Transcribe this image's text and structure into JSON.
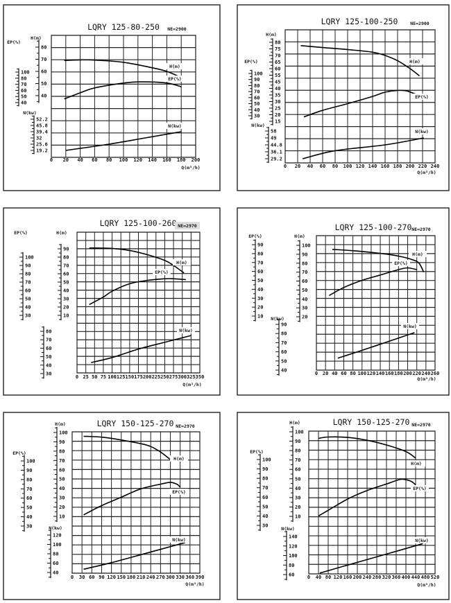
{
  "chart_data": [
    {
      "type": "line",
      "title": "LQRY 125-80-250",
      "ne": "NE=2900",
      "xlabel": "Q(m³/h)",
      "xlim": [
        0,
        200
      ],
      "xticks": [
        "0",
        "20",
        "40",
        "60",
        "80",
        "100",
        "120",
        "140",
        "160",
        "180",
        "200"
      ],
      "grid": true,
      "axes": {
        "H": {
          "title": "H(m)",
          "labels": [
            "80",
            "70",
            "60",
            "50",
            "40"
          ]
        },
        "EP": {
          "title": "EP(%)",
          "labels": [
            "100",
            "80",
            "70",
            "60",
            "50",
            "40"
          ]
        },
        "N": {
          "title": "N(kw)",
          "labels": [
            "52.2",
            "45.8",
            "39.4",
            "32",
            "25.6",
            "19.2"
          ]
        }
      },
      "series": [
        {
          "name": "H(m)",
          "axis": "H",
          "points": [
            [
              18,
              69
            ],
            [
              40,
              69.5
            ],
            [
              60,
              69.3
            ],
            [
              100,
              67.5
            ],
            [
              140,
              63
            ],
            [
              160,
              60
            ],
            [
              180,
              55
            ]
          ]
        },
        {
          "name": "EP(%)",
          "axis": "EP",
          "points": [
            [
              18,
              46
            ],
            [
              40,
              56
            ],
            [
              60,
              64
            ],
            [
              100,
              72
            ],
            [
              125,
              74
            ],
            [
              160,
              72
            ],
            [
              180,
              66
            ]
          ]
        },
        {
          "name": "N(kw)",
          "axis": "N",
          "points": [
            [
              20,
              19.2
            ],
            [
              80,
              25.6
            ],
            [
              130,
              32
            ],
            [
              180,
              39.4
            ]
          ]
        }
      ]
    },
    {
      "type": "line",
      "title": "LQRY 125-100-250",
      "ne": "NE=2900",
      "xlabel": "Q(m³/h)",
      "xlim": [
        0,
        240
      ],
      "xticks": [
        "0",
        "20",
        "40",
        "60",
        "80",
        "100",
        "120",
        "140",
        "160",
        "180",
        "200",
        "220",
        "240"
      ],
      "grid": true,
      "axes": {
        "H": {
          "title": "H(m)",
          "labels": [
            "80",
            "75",
            "70",
            "65",
            "60",
            "55",
            "45",
            "40",
            "35",
            "30",
            "25",
            "20",
            "15"
          ]
        },
        "EP": {
          "title": "EP(%)",
          "labels": [
            "100",
            "90",
            "80",
            "70",
            "60",
            "50",
            "40",
            "30"
          ]
        },
        "N": {
          "title": "N(kw)",
          "labels": [
            "58",
            "49",
            "44.8",
            "36.1",
            "29.2"
          ]
        }
      },
      "series": [
        {
          "name": "H(m)",
          "axis": "H",
          "points": [
            [
              25,
              77.5
            ],
            [
              60,
              76
            ],
            [
              100,
              74.5
            ],
            [
              140,
              72.5
            ],
            [
              160,
              70
            ],
            [
              180,
              66
            ],
            [
              200,
              60
            ],
            [
              215,
              54
            ]
          ]
        },
        {
          "name": "EP(%)",
          "axis": "EP",
          "points": [
            [
              30,
              28
            ],
            [
              60,
              39
            ],
            [
              100,
              50
            ],
            [
              140,
              62
            ],
            [
              160,
              69
            ],
            [
              180,
              72
            ],
            [
              195,
              71
            ],
            [
              215,
              63
            ]
          ]
        },
        {
          "name": "N(kw)",
          "axis": "N",
          "points": [
            [
              28,
              29.2
            ],
            [
              80,
              37.5
            ],
            [
              160,
              44.8
            ],
            [
              222,
              49
            ]
          ]
        }
      ]
    },
    {
      "type": "line",
      "title": "LQRY 125-100-260",
      "ne": "NE=2970",
      "xlabel": "Q(m³/h)",
      "xlim": [
        0,
        350
      ],
      "xticks": [
        "0",
        "25",
        "50",
        "75",
        "100",
        "125",
        "150",
        "175",
        "200",
        "225",
        "250",
        "275",
        "300",
        "325",
        "350"
      ],
      "grid": true,
      "axes": {
        "H": {
          "title": "H(m)",
          "labels": [
            "90",
            "80",
            "70",
            "60",
            "50",
            "40",
            "30",
            "20",
            "10"
          ]
        },
        "EP": {
          "title": "EP(%)",
          "labels": [
            "100",
            "90",
            "80",
            "70",
            "60",
            "50",
            "40",
            "30"
          ]
        },
        "N": {
          "title": "",
          "labels": [
            "80",
            "70",
            "60",
            "50",
            "40",
            "30"
          ]
        }
      },
      "series": [
        {
          "name": "H(m)",
          "axis": "H",
          "points": [
            [
              35,
              91
            ],
            [
              100,
              90.5
            ],
            [
              150,
              88
            ],
            [
              200,
              83
            ],
            [
              250,
              76
            ],
            [
              275,
              70
            ],
            [
              305,
              61
            ]
          ]
        },
        {
          "name": "EP(%)",
          "axis": "EP",
          "points": [
            [
              35,
              43
            ],
            [
              75,
              52
            ],
            [
              100,
              59
            ],
            [
              150,
              68
            ],
            [
              200,
              72
            ],
            [
              250,
              74
            ],
            [
              275,
              74
            ],
            [
              310,
              73
            ]
          ]
        },
        {
          "name": "N(kw)",
          "axis": "N",
          "points": [
            [
              40,
              43
            ],
            [
              100,
              49
            ],
            [
              175,
              59
            ],
            [
              250,
              67
            ],
            [
              325,
              75
            ]
          ]
        }
      ]
    },
    {
      "type": "line",
      "title": "LQRY 125-100-270",
      "ne": "NE=2970",
      "xlabel": "Q(m³/h)",
      "xlim": [
        0,
        260
      ],
      "xticks": [
        "0",
        "20",
        "40",
        "60",
        "80",
        "100",
        "120",
        "140",
        "160",
        "180",
        "200",
        "220",
        "240",
        "260"
      ],
      "grid": true,
      "axes": {
        "H": {
          "title": "H(m)",
          "labels": [
            "100",
            "90",
            "80",
            "70",
            "60",
            "50",
            "40",
            "30",
            "20"
          ]
        },
        "EP": {
          "title": "EP(%)",
          "labels": [
            "90",
            "80",
            "70",
            "60",
            "50",
            "40",
            "30",
            "20",
            "10"
          ]
        },
        "N": {
          "title": "N(kw)",
          "labels": [
            "90",
            "80",
            "70",
            "60",
            "50",
            "40"
          ]
        }
      },
      "series": [
        {
          "name": "H(m)",
          "axis": "H",
          "points": [
            [
              35,
              95.5
            ],
            [
              80,
              94
            ],
            [
              140,
              91
            ],
            [
              180,
              88
            ],
            [
              210,
              84
            ],
            [
              225,
              80
            ],
            [
              235,
              70
            ]
          ]
        },
        {
          "name": "EP(%)",
          "axis": "EP",
          "points": [
            [
              28,
              33
            ],
            [
              60,
              42
            ],
            [
              100,
              50
            ],
            [
              140,
              56
            ],
            [
              180,
              62
            ],
            [
              200,
              64
            ],
            [
              220,
              62
            ]
          ]
        },
        {
          "name": "N(kw)",
          "axis": "N",
          "points": [
            [
              47,
              53
            ],
            [
              90,
              60
            ],
            [
              150,
              70
            ],
            [
              215,
              81
            ]
          ]
        }
      ]
    },
    {
      "type": "line",
      "title": "LQRY 150-125-270",
      "ne": "NE=2970",
      "xlabel": "Q(m³/h)",
      "xlim": [
        0,
        390
      ],
      "xticks": [
        "0",
        "30",
        "60",
        "90",
        "120",
        "150",
        "180",
        "210",
        "240",
        "270",
        "300",
        "330",
        "360",
        "390"
      ],
      "grid": true,
      "axes": {
        "H": {
          "title": "H(m)",
          "labels": [
            "100",
            "90",
            "80",
            "70",
            "60",
            "50",
            "40",
            "30",
            "20",
            "10"
          ]
        },
        "EP": {
          "title": "EP(%)",
          "labels": [
            "100",
            "90",
            "80",
            "70",
            "60",
            "50",
            "40",
            "30"
          ]
        },
        "N": {
          "title": "N(kw)",
          "labels": [
            "120",
            "100",
            "80",
            "60",
            "40"
          ]
        }
      },
      "series": [
        {
          "name": "H(m)",
          "axis": "H",
          "points": [
            [
              35,
              96
            ],
            [
              90,
              95
            ],
            [
              150,
              92
            ],
            [
              210,
              88
            ],
            [
              240,
              85
            ],
            [
              270,
              79
            ],
            [
              300,
              71
            ]
          ]
        },
        {
          "name": "EP(%)",
          "axis": "EP",
          "points": [
            [
              35,
              42
            ],
            [
              90,
              52
            ],
            [
              150,
              61
            ],
            [
              210,
              70
            ],
            [
              270,
              75
            ],
            [
              300,
              77
            ],
            [
              320,
              75
            ],
            [
              330,
              72
            ]
          ]
        },
        {
          "name": "N(kw)",
          "axis": "N",
          "points": [
            [
              35,
              47
            ],
            [
              120,
              61
            ],
            [
              210,
              78
            ],
            [
              345,
              104
            ]
          ]
        }
      ]
    },
    {
      "type": "line",
      "title": "LQRY 150-125-270",
      "ne": "NE=2970",
      "xlabel": "Q(m³/h)",
      "xlim": [
        0,
        520
      ],
      "xticks": [
        "0",
        "40",
        "80",
        "120",
        "160",
        "200",
        "240",
        "280",
        "320",
        "360",
        "400",
        "440",
        "480",
        "520"
      ],
      "grid": true,
      "axes": {
        "H": {
          "title": "H(m)",
          "labels": [
            "100",
            "90",
            "80",
            "70",
            "60",
            "50",
            "40",
            "30",
            "20",
            "10"
          ]
        },
        "EP": {
          "title": "EP(%)",
          "labels": [
            "100",
            "90",
            "80",
            "70",
            "60",
            "50",
            "40",
            "30"
          ]
        },
        "N": {
          "title": "N(kw)",
          "labels": [
            "140",
            "120",
            "100",
            "80",
            "60"
          ]
        }
      },
      "series": [
        {
          "name": "H(m)",
          "axis": "H",
          "points": [
            [
              40,
              93
            ],
            [
              80,
              94.5
            ],
            [
              160,
              94
            ],
            [
              240,
              91
            ],
            [
              320,
              86
            ],
            [
              400,
              79
            ],
            [
              440,
              72
            ]
          ]
        },
        {
          "name": "EP(%)",
          "axis": "EP",
          "points": [
            [
              40,
              40
            ],
            [
              80,
              46
            ],
            [
              160,
              58
            ],
            [
              240,
              67
            ],
            [
              320,
              74
            ],
            [
              380,
              79
            ],
            [
              420,
              77
            ],
            [
              440,
              73
            ]
          ]
        },
        {
          "name": "N(kw)",
          "axis": "N",
          "points": [
            [
              45,
              63
            ],
            [
              160,
              80
            ],
            [
              320,
              103
            ],
            [
              470,
              125
            ]
          ]
        }
      ]
    }
  ]
}
